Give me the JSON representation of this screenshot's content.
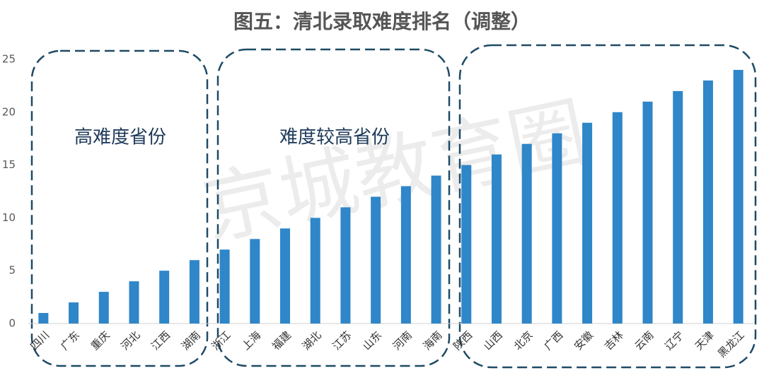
{
  "chart_data": {
    "type": "bar",
    "title": "图五：清北录取难度排名（调整）",
    "categories": [
      "四川",
      "广东",
      "重庆",
      "河北",
      "江西",
      "湖南",
      "浙江",
      "上海",
      "福建",
      "湖北",
      "江苏",
      "山东",
      "河南",
      "海南",
      "陕西",
      "山西",
      "北京",
      "广西",
      "安徽",
      "吉林",
      "云南",
      "辽宁",
      "天津",
      "黑龙江"
    ],
    "values": [
      1,
      2,
      3,
      4,
      5,
      6,
      7,
      8,
      9,
      10,
      11,
      12,
      13,
      14,
      15,
      16,
      17,
      18,
      19,
      20,
      21,
      22,
      23,
      24
    ],
    "color": "#2f86c8",
    "ylim": [
      0,
      25
    ],
    "yticks": [
      0,
      5,
      10,
      15,
      20,
      25
    ],
    "grid": false,
    "annotations": [
      "高难度省份",
      "难度较高省份"
    ],
    "watermark": "京城教育圈"
  }
}
